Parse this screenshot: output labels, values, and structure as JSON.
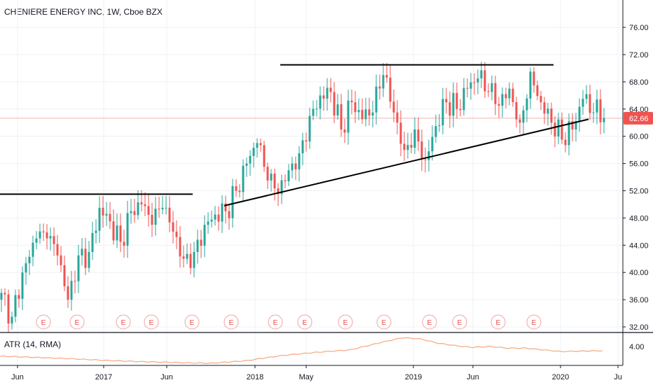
{
  "header": {
    "title": "CHENIERE ENERGY INC, 1W, Cboe BZX"
  },
  "atr": {
    "label": "ATR (14, RMA)",
    "axis_label": "4.00"
  },
  "colors": {
    "up": "#26a69a",
    "down": "#ef5350",
    "trendline": "#000000",
    "atr_line": "#f5a77f",
    "grid": "#eef1f5",
    "price_badge": "#ef5350"
  },
  "price_badge": "62.66",
  "earnings_marker_label": "E",
  "earnings_marker_count": 14,
  "chart_data": {
    "type": "candlestick",
    "title": "CHENIERE ENERGY INC, 1W, Cboe BZX",
    "yticks": [
      "76.00",
      "72.00",
      "68.00",
      "64.00",
      "60.00",
      "56.00",
      "52.00",
      "48.00",
      "44.00",
      "40.00",
      "36.00",
      "32.00"
    ],
    "ylim": [
      31.5,
      79
    ],
    "xticks": [
      "Jun",
      "2017",
      "Jun",
      "2018",
      "May",
      "2019",
      "Jun",
      "2020",
      "Ju"
    ],
    "last_price": 62.66,
    "keypoints": [
      [
        0,
        37.0
      ],
      [
        3,
        33.5
      ],
      [
        6,
        40.0
      ],
      [
        10,
        45.0
      ],
      [
        13,
        45.0
      ],
      [
        16,
        42.5
      ],
      [
        19,
        36.0
      ],
      [
        22,
        42.5
      ],
      [
        25,
        43.0
      ],
      [
        28,
        49.5
      ],
      [
        31,
        47.5
      ],
      [
        34,
        44.5
      ],
      [
        37,
        49.0
      ],
      [
        40,
        50.0
      ],
      [
        43,
        47.0
      ],
      [
        46,
        49.5
      ],
      [
        49,
        46.0
      ],
      [
        52,
        42.0
      ],
      [
        55,
        43.0
      ],
      [
        58,
        47.0
      ],
      [
        61,
        48.5
      ],
      [
        64,
        49.0
      ],
      [
        67,
        52.0
      ],
      [
        70,
        56.0
      ],
      [
        73,
        59.0
      ],
      [
        76,
        53.5
      ],
      [
        79,
        51.5
      ],
      [
        82,
        55.0
      ],
      [
        85,
        57.5
      ],
      [
        88,
        63.0
      ],
      [
        91,
        66.0
      ],
      [
        94,
        66.5
      ],
      [
        97,
        61.0
      ],
      [
        100,
        65.0
      ],
      [
        103,
        62.5
      ],
      [
        106,
        63.5
      ],
      [
        109,
        69.0
      ],
      [
        112,
        63.5
      ],
      [
        115,
        58.0
      ],
      [
        118,
        61.0
      ],
      [
        121,
        56.5
      ],
      [
        124,
        61.5
      ],
      [
        127,
        65.0
      ],
      [
        130,
        64.0
      ],
      [
        133,
        67.0
      ],
      [
        136,
        68.5
      ],
      [
        139,
        66.5
      ],
      [
        142,
        64.5
      ],
      [
        145,
        67.0
      ],
      [
        148,
        62.0
      ],
      [
        151,
        69.5
      ],
      [
        154,
        65.0
      ],
      [
        157,
        62.0
      ],
      [
        160,
        59.5
      ],
      [
        163,
        61.0
      ],
      [
        166,
        65.5
      ],
      [
        169,
        63.5
      ],
      [
        172,
        62.66
      ]
    ],
    "atr_keypoints": [
      [
        0,
        2.85
      ],
      [
        10,
        2.7
      ],
      [
        20,
        2.55
      ],
      [
        30,
        2.35
      ],
      [
        40,
        2.2
      ],
      [
        50,
        2.1
      ],
      [
        60,
        2.0
      ],
      [
        70,
        2.3
      ],
      [
        80,
        2.9
      ],
      [
        90,
        3.3
      ],
      [
        100,
        3.6
      ],
      [
        110,
        4.6
      ],
      [
        115,
        5.05
      ],
      [
        120,
        4.9
      ],
      [
        125,
        4.4
      ],
      [
        130,
        4.1
      ],
      [
        135,
        3.9
      ],
      [
        140,
        4.0
      ],
      [
        145,
        3.8
      ],
      [
        150,
        3.8
      ],
      [
        160,
        3.4
      ],
      [
        172,
        3.5
      ]
    ],
    "trendlines": [
      {
        "label": "resistance-2017",
        "from": [
          -1,
          51.5
        ],
        "to": [
          55,
          51.5
        ]
      },
      {
        "label": "resistance-2018-2019",
        "from": [
          80,
          70.5
        ],
        "to": [
          158,
          70.5
        ]
      },
      {
        "label": "rising-support",
        "from": [
          64,
          49.8
        ],
        "to": [
          168,
          62.5
        ]
      }
    ]
  }
}
